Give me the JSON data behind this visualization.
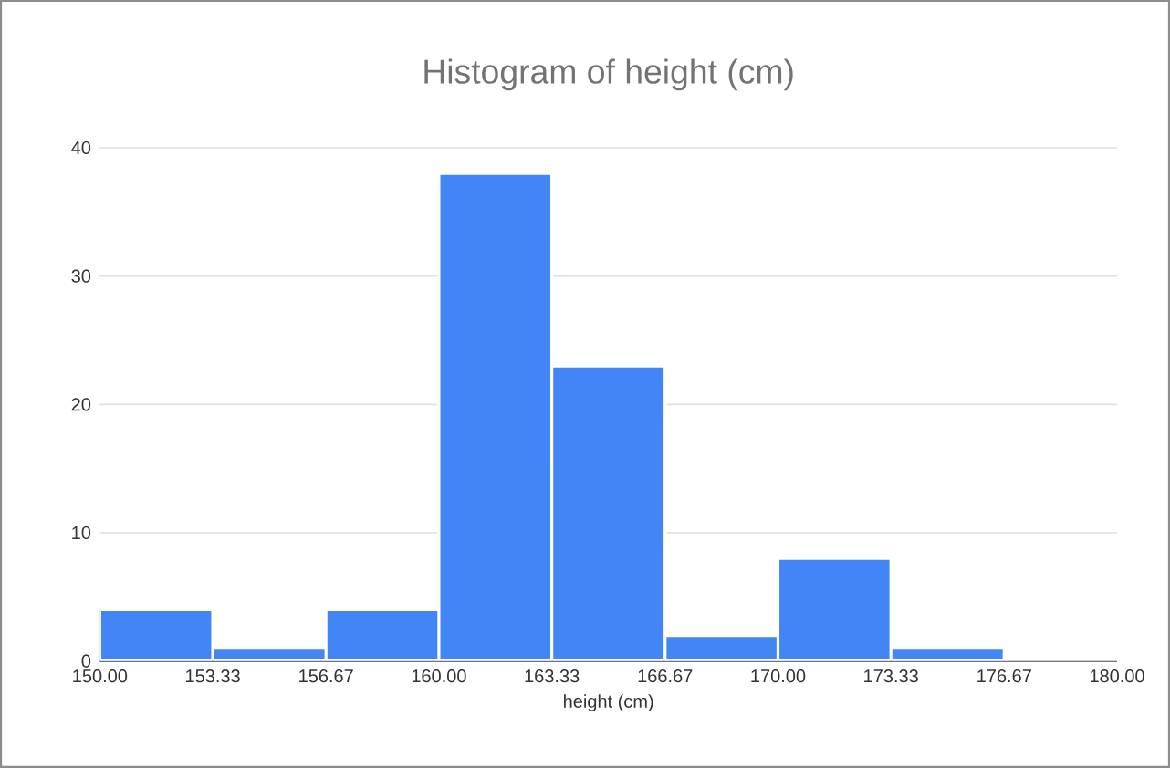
{
  "chart_data": {
    "type": "histogram",
    "title": "Histogram of height (cm)",
    "xlabel": "height (cm)",
    "bins": [
      150,
      153.33,
      156.67,
      160,
      163.33,
      166.67,
      170,
      173.33,
      176.67,
      180
    ],
    "values": [
      4,
      1,
      4,
      38,
      23,
      2,
      8,
      1,
      0
    ],
    "color": "#4285f4",
    "xlim": [
      150,
      180
    ],
    "xticks": [
      {
        "value": 150,
        "label": "150.00"
      },
      {
        "value": 153.33,
        "label": "153.33"
      },
      {
        "value": 156.67,
        "label": "156.67"
      },
      {
        "value": 160,
        "label": "160.00"
      },
      {
        "value": 163.33,
        "label": "163.33"
      },
      {
        "value": 166.67,
        "label": "166.67"
      },
      {
        "value": 170,
        "label": "170.00"
      },
      {
        "value": 173.33,
        "label": "173.33"
      },
      {
        "value": 176.67,
        "label": "176.67"
      },
      {
        "value": 180,
        "label": "180.00"
      }
    ],
    "ylim": [
      0,
      40
    ],
    "yticks": [
      0,
      10,
      20,
      30,
      40
    ],
    "grid": "y"
  }
}
